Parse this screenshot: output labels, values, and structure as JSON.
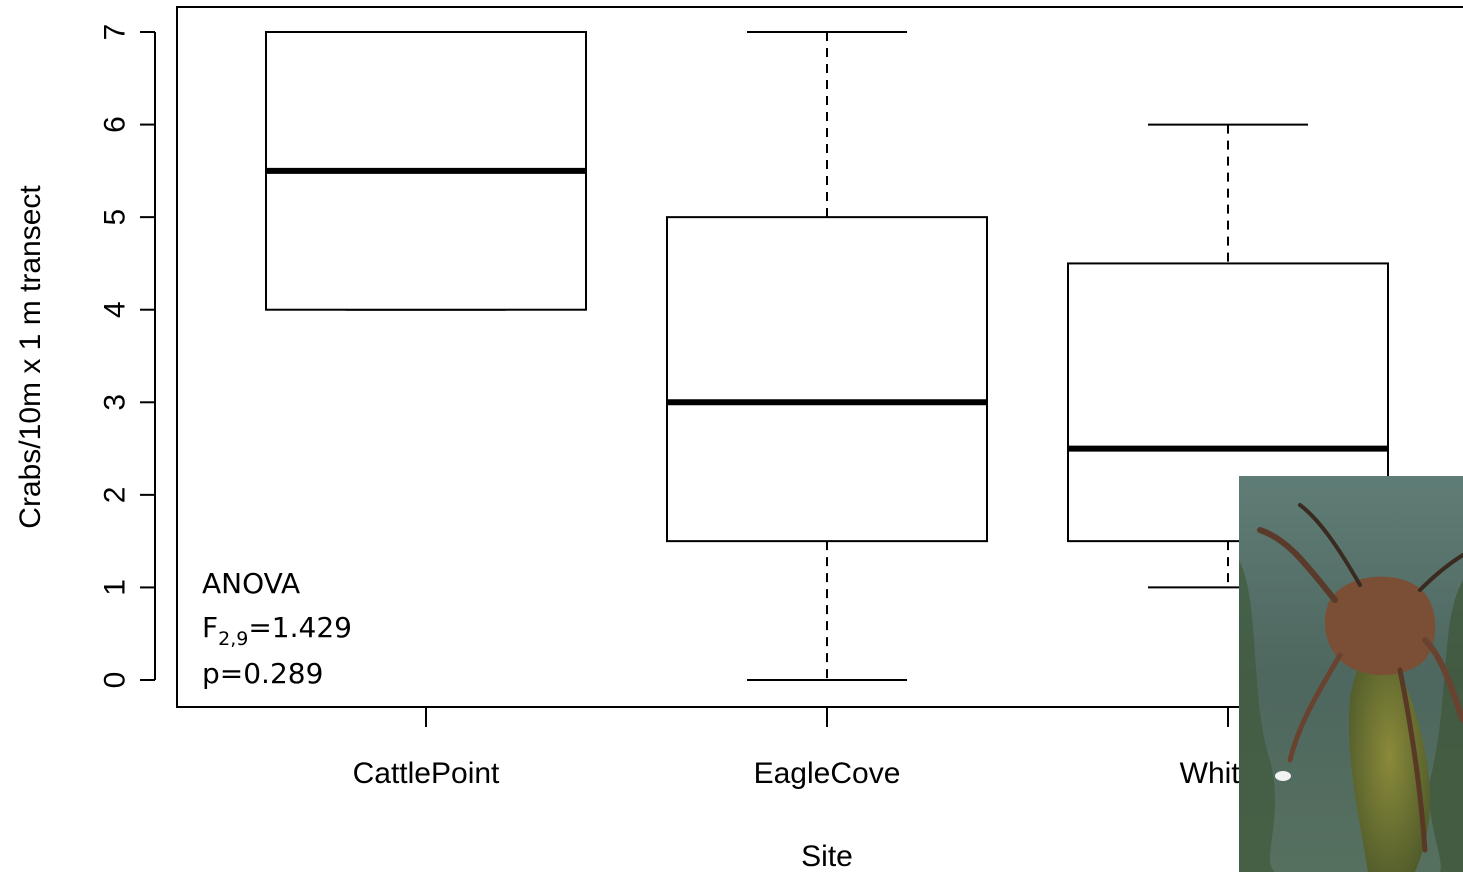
{
  "chart_data": {
    "type": "boxplot",
    "xlabel": "Site",
    "ylabel": "Crabs/10m x 1 m transect",
    "ylim": [
      0,
      7
    ],
    "yticks": [
      0,
      1,
      2,
      3,
      4,
      5,
      6,
      7
    ],
    "categories": [
      "CattlePoint",
      "EagleCove",
      "WhiteS"
    ],
    "boxes": [
      {
        "category": "CattlePoint",
        "whisker_low": 4,
        "q1": 4,
        "median": 5.5,
        "q3": 7,
        "whisker_high": 7
      },
      {
        "category": "EagleCove",
        "whisker_low": 0,
        "q1": 1.5,
        "median": 3,
        "q3": 5,
        "whisker_high": 7
      },
      {
        "category": "WhiteS",
        "whisker_low": 1,
        "q1": 1.5,
        "median": 2.5,
        "q3": 4.5,
        "whisker_high": 6
      }
    ],
    "annotation": {
      "line1": "ANOVA",
      "f_main": "F",
      "f_sub": "2,9",
      "f_value": "=1.429",
      "p_value": "p=0.289"
    },
    "grid": false,
    "legend": "none"
  },
  "photo": {
    "subject": "crab-on-kelp-photo",
    "water_color": "#4f6a62",
    "kelp_color": "#6b6a2a",
    "crab_color": "#8a5a3a"
  }
}
